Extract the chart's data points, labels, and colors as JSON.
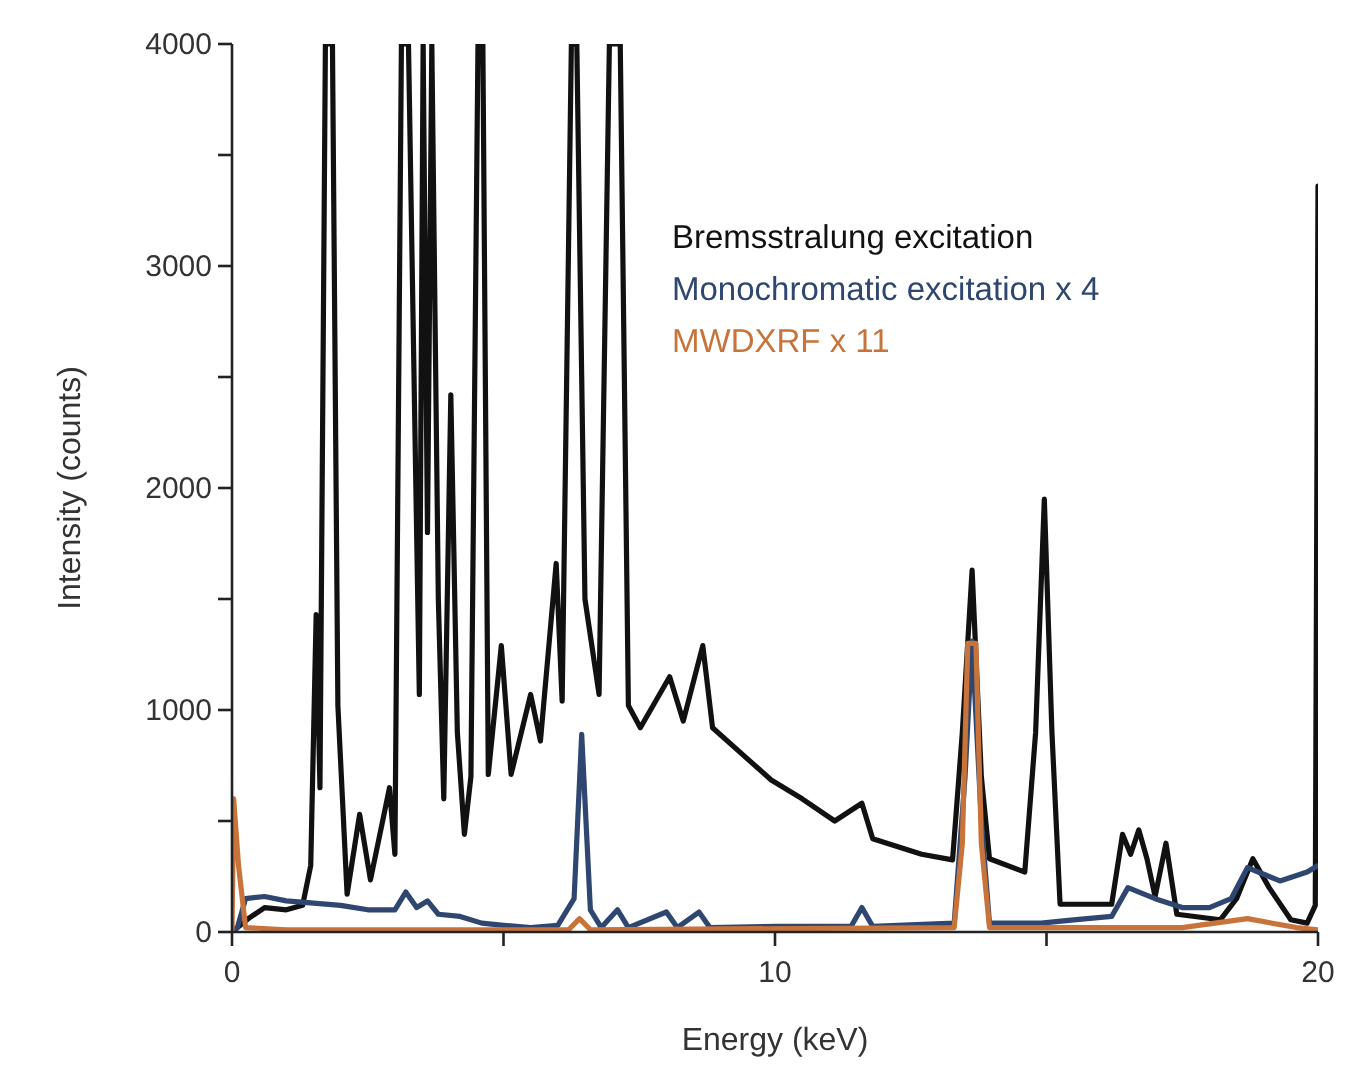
{
  "chart_data": {
    "type": "line",
    "xlabel": "Energy (keV)",
    "ylabel": "Intensity (counts)",
    "xlim": [
      0,
      20
    ],
    "ylim": [
      0,
      4000
    ],
    "xticks": [
      0,
      {
        "value": 5,
        "label": null
      },
      10,
      {
        "value": 15,
        "label": null
      },
      20
    ],
    "yticks": [
      0,
      {
        "value": 500,
        "label": null
      },
      1000,
      {
        "value": 1500,
        "label": null
      },
      2000,
      {
        "value": 2500,
        "label": null
      },
      3000,
      {
        "value": 3500,
        "label": null
      },
      4000
    ],
    "grid": false,
    "legend": "top right",
    "marker": "none",
    "line_style": "solid",
    "series": [
      {
        "name": "Bremsstralung excitation",
        "color": "#111111",
        "x": [
          0,
          0.3,
          0.6,
          1.0,
          1.3,
          1.45,
          1.55,
          1.62,
          1.72,
          1.85,
          1.95,
          2.12,
          2.35,
          2.55,
          2.8,
          2.9,
          3.0,
          3.12,
          3.25,
          3.45,
          3.52,
          3.6,
          3.68,
          3.8,
          3.9,
          4.03,
          4.15,
          4.28,
          4.4,
          4.53,
          4.62,
          4.72,
          4.96,
          5.14,
          5.5,
          5.68,
          5.97,
          6.08,
          6.25,
          6.35,
          6.5,
          6.76,
          6.95,
          7.15,
          7.3,
          7.52,
          8.06,
          8.31,
          8.67,
          8.85,
          9.4,
          9.93,
          10.5,
          11.1,
          11.6,
          11.8,
          12.7,
          13.27,
          13.45,
          13.63,
          13.8,
          13.95,
          14.6,
          14.8,
          14.96,
          15.1,
          15.25,
          15.7,
          16.2,
          16.4,
          16.55,
          16.7,
          16.85,
          17.0,
          17.2,
          17.4,
          18.2,
          18.5,
          18.8,
          19.1,
          19.5,
          19.8,
          19.95,
          20
        ],
        "values": [
          0,
          60,
          110,
          100,
          120,
          300,
          1430,
          650,
          4000,
          4000,
          1020,
          170,
          530,
          235,
          530,
          650,
          350,
          4000,
          4000,
          1070,
          4000,
          1800,
          4000,
          1500,
          600,
          2420,
          900,
          440,
          700,
          4000,
          4000,
          710,
          1290,
          710,
          1070,
          860,
          1660,
          1040,
          4000,
          4000,
          1500,
          1070,
          4000,
          4000,
          1020,
          920,
          1150,
          950,
          1290,
          920,
          800,
          685,
          600,
          500,
          580,
          420,
          350,
          325,
          900,
          1630,
          700,
          330,
          270,
          900,
          1950,
          900,
          125,
          125,
          125,
          440,
          350,
          460,
          330,
          160,
          400,
          80,
          55,
          150,
          330,
          200,
          55,
          40,
          120,
          3360
        ]
      },
      {
        "name": "Monochromatic excitation x 4",
        "color": "#2f4670",
        "x": [
          0,
          0.1,
          0.25,
          0.6,
          1.0,
          1.5,
          2.0,
          2.5,
          3.0,
          3.2,
          3.4,
          3.6,
          3.8,
          4.2,
          4.6,
          5.0,
          5.5,
          6.0,
          6.3,
          6.44,
          6.6,
          6.8,
          7.1,
          7.3,
          8.0,
          8.2,
          8.6,
          8.8,
          10,
          11.4,
          11.6,
          11.8,
          13.3,
          13.5,
          13.63,
          13.8,
          13.95,
          14.9,
          15.5,
          16.2,
          16.5,
          17.0,
          17.5,
          18.0,
          18.4,
          18.7,
          19.0,
          19.3,
          19.8,
          20
        ],
        "values": [
          0,
          20,
          150,
          160,
          140,
          130,
          120,
          100,
          100,
          180,
          110,
          140,
          80,
          70,
          40,
          30,
          20,
          30,
          150,
          890,
          100,
          20,
          100,
          20,
          90,
          20,
          90,
          20,
          25,
          25,
          110,
          25,
          40,
          700,
          1310,
          500,
          40,
          40,
          55,
          70,
          200,
          150,
          110,
          110,
          150,
          290,
          260,
          230,
          270,
          300
        ]
      },
      {
        "name": "MWDXRF x 11",
        "color": "#c8733a",
        "x": [
          0,
          0.03,
          0.12,
          0.25,
          1,
          6.2,
          6.4,
          6.6,
          13.3,
          13.45,
          13.55,
          13.7,
          13.8,
          13.95,
          17.5,
          18.7,
          19.6,
          20
        ],
        "values": [
          0,
          600,
          300,
          20,
          10,
          10,
          60,
          10,
          20,
          400,
          1300,
          1300,
          400,
          20,
          20,
          60,
          20,
          10
        ]
      }
    ]
  }
}
